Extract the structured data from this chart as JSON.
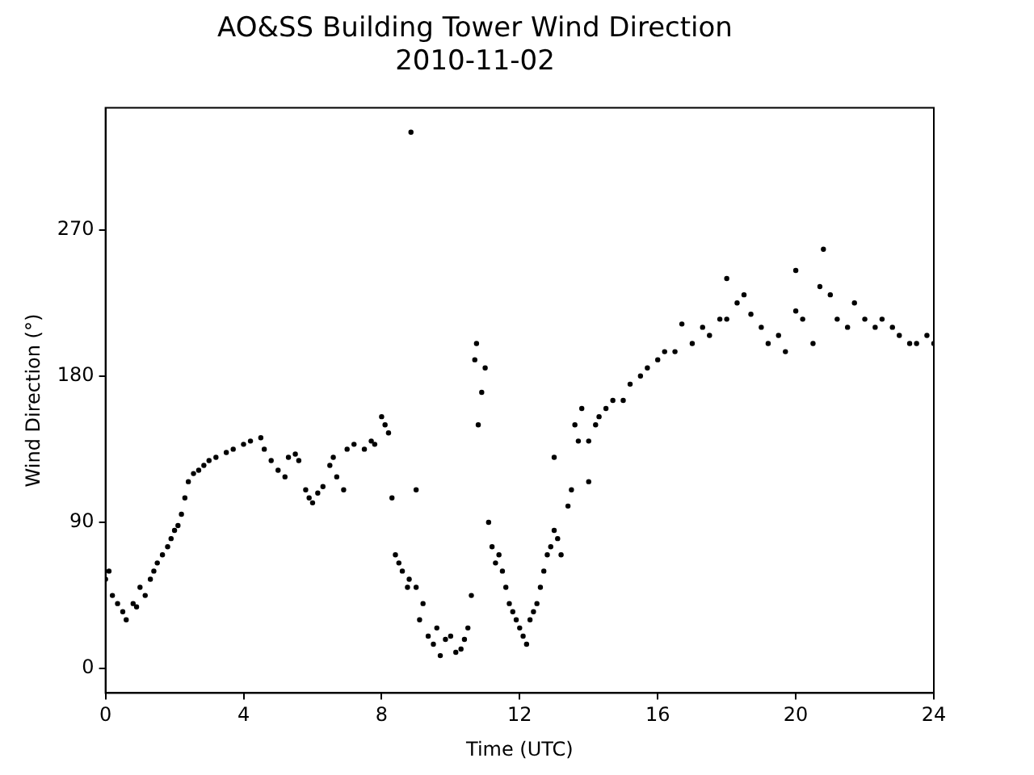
{
  "chart_data": {
    "type": "scatter",
    "title": "AO&SS Building Tower Wind Direction",
    "subtitle": "2010-11-02",
    "xlabel": "Time (UTC)",
    "ylabel": "Wind Direction (°)",
    "xlim": [
      0,
      24
    ],
    "xticks": [
      0,
      4,
      8,
      12,
      16,
      20,
      24
    ],
    "ylim": [
      -15,
      345
    ],
    "yticks": [
      0,
      90,
      180,
      270
    ],
    "grid": false,
    "legend": false,
    "marker": "circle",
    "series": [
      {
        "color": "#000000",
        "x": [
          0,
          0.1,
          0.2,
          0.35,
          0.5,
          0.6,
          0.8,
          0.9,
          1.0,
          1.15,
          1.3,
          1.4,
          1.5,
          1.65,
          1.8,
          1.9,
          2.0,
          2.1,
          2.2,
          2.3,
          2.4,
          2.55,
          2.7,
          2.85,
          3.0,
          3.2,
          3.5,
          3.7,
          4.0,
          4.2,
          4.5,
          4.6,
          4.8,
          5.0,
          5.2,
          5.3,
          5.5,
          5.6,
          5.8,
          5.9,
          6.0,
          6.15,
          6.3,
          6.5,
          6.6,
          6.7,
          6.9,
          7.0,
          7.2,
          7.5,
          7.7,
          7.8,
          8.0,
          8.1,
          8.2,
          8.3,
          8.4,
          8.5,
          8.6,
          8.75,
          8.8,
          8.85,
          9.0,
          9.0,
          9.1,
          9.2,
          9.35,
          9.5,
          9.6,
          9.7,
          9.85,
          10.0,
          10.15,
          10.3,
          10.4,
          10.5,
          10.6,
          10.7,
          10.75,
          10.8,
          10.9,
          11.0,
          11.1,
          11.2,
          11.3,
          11.4,
          11.5,
          11.6,
          11.7,
          11.8,
          11.9,
          12.0,
          12.1,
          12.2,
          12.3,
          12.4,
          12.5,
          12.6,
          12.7,
          12.8,
          12.9,
          13.0,
          13.0,
          13.1,
          13.2,
          13.4,
          13.5,
          13.6,
          13.7,
          13.8,
          14.0,
          14.0,
          14.2,
          14.3,
          14.5,
          14.7,
          15.0,
          15.2,
          15.5,
          15.7,
          16.0,
          16.2,
          16.5,
          16.7,
          17.0,
          17.3,
          17.5,
          17.8,
          18.0,
          18.0,
          18.3,
          18.5,
          18.7,
          19.0,
          19.2,
          19.5,
          19.7,
          20.0,
          20.0,
          20.2,
          20.5,
          20.7,
          20.8,
          21.0,
          21.2,
          21.5,
          21.7,
          22.0,
          22.3,
          22.5,
          22.8,
          23.0,
          23.3,
          23.5,
          23.8,
          24.0
        ],
        "values": [
          55,
          60,
          45,
          40,
          35,
          30,
          40,
          38,
          50,
          45,
          55,
          60,
          65,
          70,
          75,
          80,
          85,
          88,
          95,
          105,
          115,
          120,
          122,
          125,
          128,
          130,
          133,
          135,
          138,
          140,
          142,
          135,
          128,
          122,
          118,
          130,
          132,
          128,
          110,
          105,
          102,
          108,
          112,
          125,
          130,
          118,
          110,
          135,
          138,
          135,
          140,
          138,
          155,
          150,
          145,
          105,
          70,
          65,
          60,
          50,
          55,
          330,
          50,
          110,
          30,
          40,
          20,
          15,
          25,
          8,
          18,
          20,
          10,
          12,
          18,
          25,
          45,
          190,
          200,
          150,
          170,
          185,
          90,
          75,
          65,
          70,
          60,
          50,
          40,
          35,
          30,
          25,
          20,
          15,
          30,
          35,
          40,
          50,
          60,
          70,
          75,
          85,
          130,
          80,
          70,
          100,
          110,
          150,
          140,
          160,
          140,
          115,
          150,
          155,
          160,
          165,
          165,
          175,
          180,
          185,
          190,
          195,
          195,
          212,
          200,
          210,
          205,
          215,
          215,
          240,
          225,
          230,
          218,
          210,
          200,
          205,
          195,
          220,
          245,
          215,
          200,
          235,
          258,
          230,
          215,
          210,
          225,
          215,
          210,
          215,
          210,
          205,
          200,
          200,
          205,
          200
        ]
      }
    ]
  }
}
